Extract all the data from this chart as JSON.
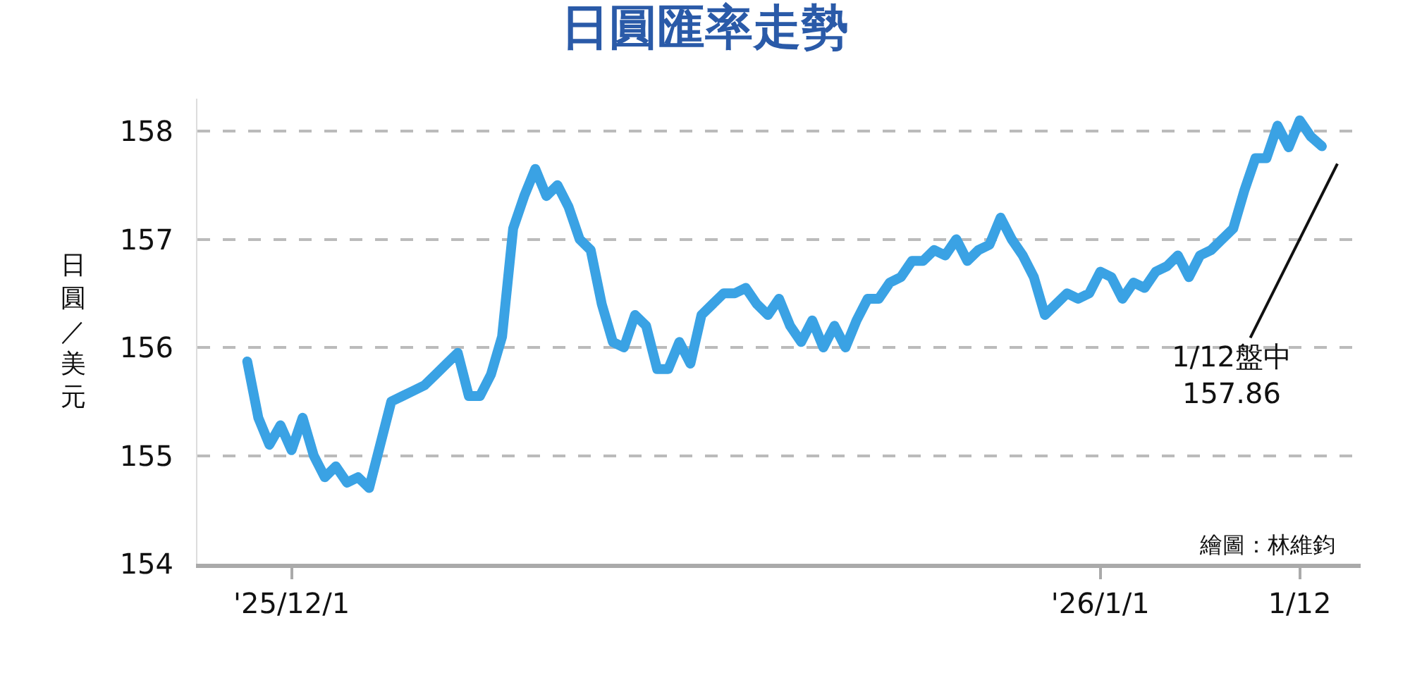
{
  "chart_data": {
    "type": "line",
    "title": "日圓匯率走勢",
    "ylabel": "日圓／美元",
    "categories": [
      null,
      null,
      null,
      null,
      "'25/12/1",
      null,
      null,
      null,
      null,
      null,
      null,
      null,
      null,
      null,
      null,
      null,
      null,
      null,
      null,
      null,
      null,
      null,
      null,
      null,
      null,
      null,
      null,
      null,
      null,
      null,
      null,
      null,
      null,
      null,
      null,
      null,
      null,
      null,
      null,
      null,
      null,
      null,
      null,
      null,
      null,
      null,
      null,
      null,
      null,
      null,
      null,
      null,
      null,
      null,
      null,
      null,
      null,
      null,
      null,
      null,
      null,
      null,
      null,
      null,
      null,
      null,
      null,
      null,
      null,
      null,
      null,
      null,
      null,
      null,
      null,
      null,
      null,
      "'26/1/1",
      null,
      null,
      null,
      null,
      null,
      null,
      null,
      null,
      null,
      null,
      null,
      null,
      null,
      null,
      null,
      null,
      null,
      "1/12",
      null,
      null
    ],
    "series": [
      {
        "color": "#3aa2e4",
        "values": [
          155.87,
          155.35,
          155.1,
          155.28,
          155.05,
          155.35,
          155.0,
          154.8,
          154.9,
          154.75,
          154.8,
          154.7,
          155.1,
          155.5,
          155.55,
          155.6,
          155.65,
          155.75,
          155.85,
          155.95,
          155.55,
          155.55,
          155.75,
          156.1,
          157.1,
          157.4,
          157.65,
          157.4,
          157.5,
          157.3,
          157.0,
          156.9,
          156.4,
          156.05,
          156.0,
          156.3,
          156.2,
          155.8,
          155.8,
          156.05,
          155.85,
          156.3,
          156.4,
          156.5,
          156.5,
          156.55,
          156.4,
          156.3,
          156.45,
          156.2,
          156.05,
          156.25,
          156.0,
          156.2,
          156.0,
          156.25,
          156.45,
          156.45,
          156.6,
          156.65,
          156.8,
          156.8,
          156.9,
          156.85,
          157.0,
          156.8,
          156.9,
          156.95,
          157.2,
          157.0,
          156.85,
          156.65,
          156.3,
          156.4,
          156.5,
          156.45,
          156.5,
          156.7,
          156.65,
          156.45,
          156.6,
          156.55,
          156.7,
          156.75,
          156.85,
          156.65,
          156.85,
          156.9,
          157.0,
          157.1,
          157.45,
          157.75,
          157.75,
          158.05,
          157.85,
          158.1,
          157.95,
          157.86
        ]
      }
    ],
    "ylim": [
      154,
      158.3
    ],
    "yticks": [
      154,
      155,
      156,
      157,
      158
    ],
    "grid": "y",
    "legend": false,
    "marker": "none",
    "line_style": "solid",
    "annotations": [
      "1/12盤中\n157.86",
      "繪圖：林維鈞"
    ]
  }
}
